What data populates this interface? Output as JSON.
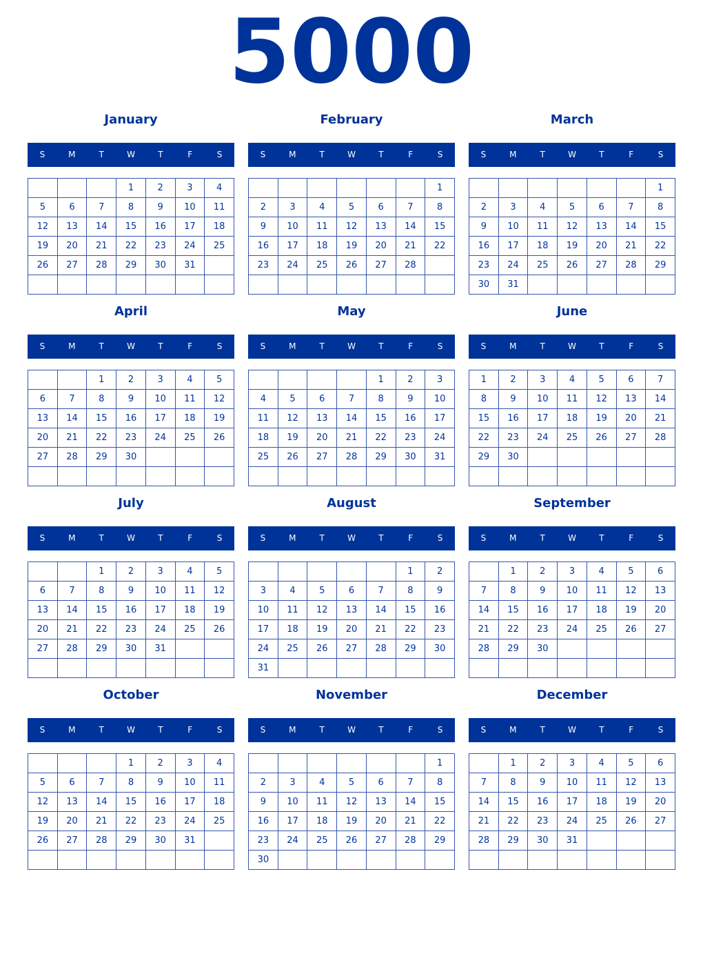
{
  "year": "5000",
  "weekdays": [
    "S",
    "M",
    "T",
    "W",
    "T",
    "F",
    "S"
  ],
  "colors": {
    "primary": "#003399",
    "header_text": "#ffffff",
    "grid_border": "#3355aa"
  },
  "months": [
    {
      "name": "January",
      "weeks": [
        [
          null,
          null,
          null,
          1,
          2,
          3,
          4
        ],
        [
          5,
          6,
          7,
          8,
          9,
          10,
          11
        ],
        [
          12,
          13,
          14,
          15,
          16,
          17,
          18
        ],
        [
          19,
          20,
          21,
          22,
          23,
          24,
          25
        ],
        [
          26,
          27,
          28,
          29,
          30,
          31,
          null
        ],
        [
          null,
          null,
          null,
          null,
          null,
          null,
          null
        ]
      ]
    },
    {
      "name": "February",
      "weeks": [
        [
          null,
          null,
          null,
          null,
          null,
          null,
          1
        ],
        [
          2,
          3,
          4,
          5,
          6,
          7,
          8
        ],
        [
          9,
          10,
          11,
          12,
          13,
          14,
          15
        ],
        [
          16,
          17,
          18,
          19,
          20,
          21,
          22
        ],
        [
          23,
          24,
          25,
          26,
          27,
          28,
          null
        ],
        [
          null,
          null,
          null,
          null,
          null,
          null,
          null
        ]
      ]
    },
    {
      "name": "March",
      "weeks": [
        [
          null,
          null,
          null,
          null,
          null,
          null,
          1
        ],
        [
          2,
          3,
          4,
          5,
          6,
          7,
          8
        ],
        [
          9,
          10,
          11,
          12,
          13,
          14,
          15
        ],
        [
          16,
          17,
          18,
          19,
          20,
          21,
          22
        ],
        [
          23,
          24,
          25,
          26,
          27,
          28,
          29
        ],
        [
          30,
          31,
          null,
          null,
          null,
          null,
          null
        ]
      ]
    },
    {
      "name": "April",
      "weeks": [
        [
          null,
          null,
          1,
          2,
          3,
          4,
          5
        ],
        [
          6,
          7,
          8,
          9,
          10,
          11,
          12
        ],
        [
          13,
          14,
          15,
          16,
          17,
          18,
          19
        ],
        [
          20,
          21,
          22,
          23,
          24,
          25,
          26
        ],
        [
          27,
          28,
          29,
          30,
          null,
          null,
          null
        ],
        [
          null,
          null,
          null,
          null,
          null,
          null,
          null
        ]
      ]
    },
    {
      "name": "May",
      "weeks": [
        [
          null,
          null,
          null,
          null,
          1,
          2,
          3
        ],
        [
          4,
          5,
          6,
          7,
          8,
          9,
          10
        ],
        [
          11,
          12,
          13,
          14,
          15,
          16,
          17
        ],
        [
          18,
          19,
          20,
          21,
          22,
          23,
          24
        ],
        [
          25,
          26,
          27,
          28,
          29,
          30,
          31
        ],
        [
          null,
          null,
          null,
          null,
          null,
          null,
          null
        ]
      ]
    },
    {
      "name": "June",
      "weeks": [
        [
          1,
          2,
          3,
          4,
          5,
          6,
          7
        ],
        [
          8,
          9,
          10,
          11,
          12,
          13,
          14
        ],
        [
          15,
          16,
          17,
          18,
          19,
          20,
          21
        ],
        [
          22,
          23,
          24,
          25,
          26,
          27,
          28
        ],
        [
          29,
          30,
          null,
          null,
          null,
          null,
          null
        ],
        [
          null,
          null,
          null,
          null,
          null,
          null,
          null
        ]
      ]
    },
    {
      "name": "July",
      "weeks": [
        [
          null,
          null,
          1,
          2,
          3,
          4,
          5
        ],
        [
          6,
          7,
          8,
          9,
          10,
          11,
          12
        ],
        [
          13,
          14,
          15,
          16,
          17,
          18,
          19
        ],
        [
          20,
          21,
          22,
          23,
          24,
          25,
          26
        ],
        [
          27,
          28,
          29,
          30,
          31,
          null,
          null
        ],
        [
          null,
          null,
          null,
          null,
          null,
          null,
          null
        ]
      ]
    },
    {
      "name": "August",
      "weeks": [
        [
          null,
          null,
          null,
          null,
          null,
          1,
          2
        ],
        [
          3,
          4,
          5,
          6,
          7,
          8,
          9
        ],
        [
          10,
          11,
          12,
          13,
          14,
          15,
          16
        ],
        [
          17,
          18,
          19,
          20,
          21,
          22,
          23
        ],
        [
          24,
          25,
          26,
          27,
          28,
          29,
          30
        ],
        [
          31,
          null,
          null,
          null,
          null,
          null,
          null
        ]
      ]
    },
    {
      "name": "September",
      "weeks": [
        [
          null,
          1,
          2,
          3,
          4,
          5,
          6
        ],
        [
          7,
          8,
          9,
          10,
          11,
          12,
          13
        ],
        [
          14,
          15,
          16,
          17,
          18,
          19,
          20
        ],
        [
          21,
          22,
          23,
          24,
          25,
          26,
          27
        ],
        [
          28,
          29,
          30,
          null,
          null,
          null,
          null
        ],
        [
          null,
          null,
          null,
          null,
          null,
          null,
          null
        ]
      ]
    },
    {
      "name": "October",
      "weeks": [
        [
          null,
          null,
          null,
          1,
          2,
          3,
          4
        ],
        [
          5,
          6,
          7,
          8,
          9,
          10,
          11
        ],
        [
          12,
          13,
          14,
          15,
          16,
          17,
          18
        ],
        [
          19,
          20,
          21,
          22,
          23,
          24,
          25
        ],
        [
          26,
          27,
          28,
          29,
          30,
          31,
          null
        ],
        [
          null,
          null,
          null,
          null,
          null,
          null,
          null
        ]
      ]
    },
    {
      "name": "November",
      "weeks": [
        [
          null,
          null,
          null,
          null,
          null,
          null,
          1
        ],
        [
          2,
          3,
          4,
          5,
          6,
          7,
          8
        ],
        [
          9,
          10,
          11,
          12,
          13,
          14,
          15
        ],
        [
          16,
          17,
          18,
          19,
          20,
          21,
          22
        ],
        [
          23,
          24,
          25,
          26,
          27,
          28,
          29
        ],
        [
          30,
          null,
          null,
          null,
          null,
          null,
          null
        ]
      ]
    },
    {
      "name": "December",
      "weeks": [
        [
          null,
          1,
          2,
          3,
          4,
          5,
          6
        ],
        [
          7,
          8,
          9,
          10,
          11,
          12,
          13
        ],
        [
          14,
          15,
          16,
          17,
          18,
          19,
          20
        ],
        [
          21,
          22,
          23,
          24,
          25,
          26,
          27
        ],
        [
          28,
          29,
          30,
          31,
          null,
          null,
          null
        ],
        [
          null,
          null,
          null,
          null,
          null,
          null,
          null
        ]
      ]
    }
  ]
}
